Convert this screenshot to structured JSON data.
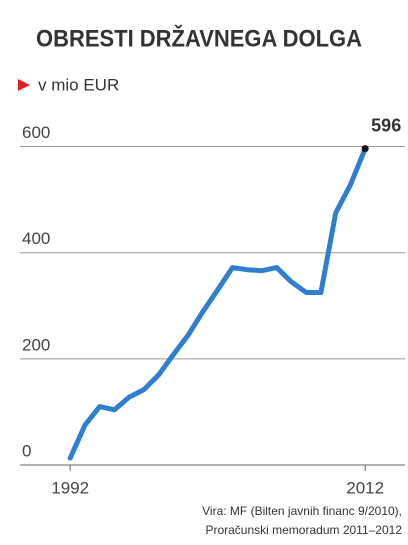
{
  "chart_data": {
    "type": "line",
    "title": "OBRESTI DRŽAVNEGA DOLGA",
    "subtitle": "v mio EUR",
    "x": [
      1992,
      1993,
      1994,
      1995,
      1996,
      1997,
      1998,
      1999,
      2000,
      2001,
      2002,
      2003,
      2004,
      2005,
      2006,
      2007,
      2008,
      2009,
      2010,
      2011,
      2012
    ],
    "values": [
      13,
      75,
      110,
      104,
      128,
      142,
      170,
      208,
      245,
      289,
      330,
      372,
      368,
      366,
      372,
      345,
      325,
      325,
      475,
      528,
      596
    ],
    "color": "#2e7fd0",
    "xlim": [
      1988.6,
      2014.7
    ],
    "xticks": [
      1992,
      2012
    ],
    "ylim": [
      0,
      650
    ],
    "yticks": [
      0,
      200,
      400,
      600
    ],
    "grid": true,
    "source": [
      "Vira: MF (Bilten javnih financ 9/2010),",
      "Proračunski memoradum 2011–2012"
    ]
  }
}
